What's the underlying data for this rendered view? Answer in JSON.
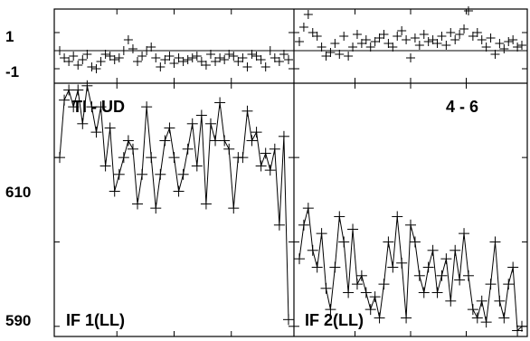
{
  "chart_data": {
    "type": "scatter",
    "description_of_layout": "two columns; top row residual strips, bottom row main plots",
    "x_axis": {
      "xlim": [
        0,
        100
      ]
    },
    "residual_axis": {
      "ylim": [
        -1.8,
        2.3
      ],
      "tick_labels": [
        "1",
        "-1"
      ],
      "zero_line": true
    },
    "main_axis": {
      "ylim": [
        588.8,
        618.8
      ],
      "tick_labels": [
        "610",
        "590"
      ]
    },
    "panels": [
      {
        "label": "IF 1(LL)",
        "series": [
          {
            "type": "line",
            "x": [
              0,
              2,
              4,
              6,
              8,
              10,
              12,
              14,
              16,
              18,
              20,
              22,
              24,
              26,
              28,
              30,
              32,
              34,
              36,
              38,
              40,
              42,
              44,
              46,
              48,
              50,
              52,
              54,
              56,
              58,
              60,
              62,
              64,
              66,
              68,
              70,
              72,
              74,
              76,
              78,
              80,
              82,
              84,
              86,
              88,
              90,
              92,
              94,
              96,
              98,
              100
            ],
            "values": [
              610,
              616.8,
              618,
              616,
              618,
              614,
              618.5,
              616,
              613,
              616,
              609,
              613.5,
              606,
              608,
              610,
              612,
              611,
              604.5,
              608,
              616,
              610,
              604,
              608,
              612,
              613.5,
              610,
              606,
              608,
              611,
              614,
              609,
              615,
              604.5,
              614,
              612,
              616.5,
              612,
              611,
              604,
              610,
              610,
              615.5,
              612,
              613,
              609,
              610.5,
              608.5,
              611,
              602,
              612.5,
              590.8
            ]
          }
        ],
        "residuals": {
          "x": [
            0,
            2,
            4,
            6,
            8,
            10,
            12,
            14,
            16,
            18,
            20,
            22,
            24,
            26,
            28,
            30,
            32,
            34,
            36,
            38,
            40,
            42,
            44,
            46,
            48,
            50,
            52,
            54,
            56,
            58,
            60,
            62,
            64,
            66,
            68,
            70,
            72,
            74,
            76,
            78,
            80,
            82,
            84,
            86,
            88,
            90,
            92,
            94,
            96,
            98,
            100
          ],
          "values": [
            0.0,
            -0.4,
            -0.6,
            -0.3,
            -0.8,
            -0.5,
            -0.2,
            -0.9,
            -1.0,
            -0.6,
            -0.2,
            -0.3,
            -0.5,
            -0.4,
            0.0,
            0.6,
            0.1,
            -0.6,
            -0.3,
            0.0,
            0.2,
            -0.4,
            -0.9,
            -0.5,
            -0.3,
            -0.7,
            -0.4,
            -0.6,
            -0.5,
            -0.4,
            -0.3,
            -0.6,
            -0.8,
            -0.2,
            -0.6,
            -0.4,
            -0.5,
            -0.2,
            -0.3,
            -0.6,
            -0.4,
            -0.9,
            -0.2,
            -0.3,
            -0.5,
            -0.9,
            0.0,
            -0.4,
            -0.6,
            -0.2,
            -0.5
          ]
        }
      },
      {
        "label": "IF 2(LL)",
        "series": [
          {
            "type": "line",
            "x": [
              0,
              2,
              4,
              6,
              8,
              10,
              12,
              14,
              16,
              18,
              20,
              22,
              24,
              26,
              28,
              30,
              32,
              34,
              36,
              38,
              40,
              42,
              44,
              46,
              48,
              50,
              52,
              54,
              56,
              58,
              60,
              62,
              64,
              66,
              68,
              70,
              72,
              74,
              76,
              78,
              80,
              82,
              84,
              86,
              88,
              90,
              92,
              94,
              96,
              98,
              100
            ],
            "values": [
              598,
              602,
              604,
              599,
              597,
              601,
              594.5,
              592,
              597,
              603,
              600,
              594,
              601.5,
              595,
              596,
              594,
              592,
              593.5,
              591,
              595,
              600,
              597,
              603,
              597.5,
              591,
              602,
              600,
              596,
              594,
              597,
              599,
              594,
              596,
              598,
              593,
              599,
              595.5,
              601,
              596,
              592,
              591,
              593,
              590.5,
              595,
              600,
              593,
              591,
              595,
              597,
              589.5,
              590
            ]
          }
        ],
        "residuals": {
          "x": [
            0,
            2,
            4,
            6,
            8,
            10,
            12,
            14,
            16,
            18,
            20,
            22,
            24,
            26,
            28,
            30,
            32,
            34,
            36,
            38,
            40,
            42,
            44,
            46,
            48,
            50,
            52,
            54,
            56,
            58,
            60,
            62,
            64,
            66,
            68,
            70,
            72,
            74,
            76,
            78,
            80,
            82,
            84,
            86,
            88,
            90,
            92,
            94,
            96,
            98,
            100
          ],
          "values": [
            0.5,
            1.3,
            2.0,
            1.0,
            0.8,
            0.2,
            -0.3,
            -0.1,
            0.4,
            -0.2,
            0.8,
            -0.3,
            0.2,
            0.9,
            0.4,
            0.6,
            0.2,
            0.5,
            0.7,
            0.9,
            0.4,
            0.2,
            0.8,
            1.1,
            0.6,
            -0.4,
            0.7,
            0.3,
            0.9,
            0.5,
            0.6,
            0.4,
            0.8,
            0.3,
            1.0,
            0.6,
            0.9,
            1.2,
            2.2,
            0.8,
            1.0,
            0.6,
            0.2,
            0.7,
            -0.2,
            0.4,
            0.1,
            0.5,
            0.6,
            0.2,
            0.3
          ]
        }
      }
    ],
    "annotations": [
      {
        "text": "TI - UD",
        "panel": 0
      },
      {
        "text": "4 - 6",
        "panel": 1
      }
    ],
    "grid": false
  }
}
